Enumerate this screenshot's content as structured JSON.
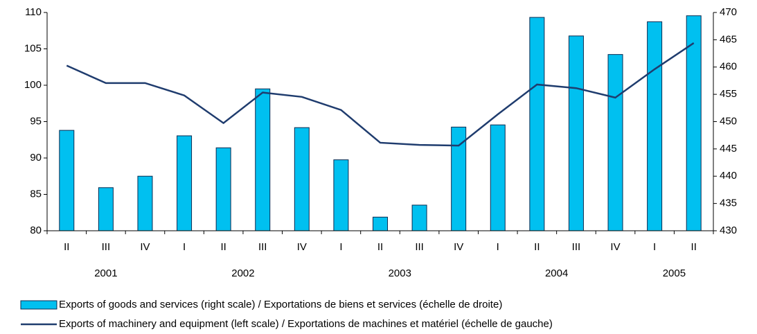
{
  "chart_data": {
    "type": "bar_line",
    "categories": [
      "II",
      "III",
      "IV",
      "I",
      "II",
      "III",
      "IV",
      "I",
      "II",
      "III",
      "IV",
      "I",
      "II",
      "III",
      "IV",
      "I",
      "II"
    ],
    "category_groups": [
      {
        "label": "2001",
        "count": 3
      },
      {
        "label": "2002",
        "count": 4
      },
      {
        "label": "2003",
        "count": 4
      },
      {
        "label": "2004",
        "count": 4
      },
      {
        "label": "2005",
        "count": 2
      }
    ],
    "series": [
      {
        "name": "Exports of goods and services (right scale) / Exportations de biens et services (échelle de droite)",
        "type": "bar",
        "axis": "y2",
        "color": "#00c0f0",
        "values": [
          448.4,
          437.9,
          440.0,
          447.4,
          445.2,
          456.0,
          448.9,
          443.0,
          432.5,
          434.7,
          449.0,
          449.4,
          469.1,
          465.7,
          462.3,
          468.3,
          469.4
        ]
      },
      {
        "name": "Exports of machinery and equipment (left scale) / Exportations de machines et matériel (échelle de gauche)",
        "type": "line",
        "axis": "y",
        "color": "#1f3c6e",
        "values": [
          102.7,
          100.3,
          100.3,
          98.6,
          94.8,
          99.0,
          98.4,
          96.6,
          92.1,
          91.8,
          91.7,
          96.0,
          100.1,
          99.6,
          98.3,
          102.2,
          105.8
        ]
      }
    ],
    "ylim": [
      80,
      110
    ],
    "yticks": [
      80,
      85,
      90,
      95,
      100,
      105,
      110
    ],
    "y2lim": [
      430,
      470
    ],
    "y2ticks": [
      430,
      435,
      440,
      445,
      450,
      455,
      460,
      465,
      470
    ],
    "legend": "bottom"
  }
}
